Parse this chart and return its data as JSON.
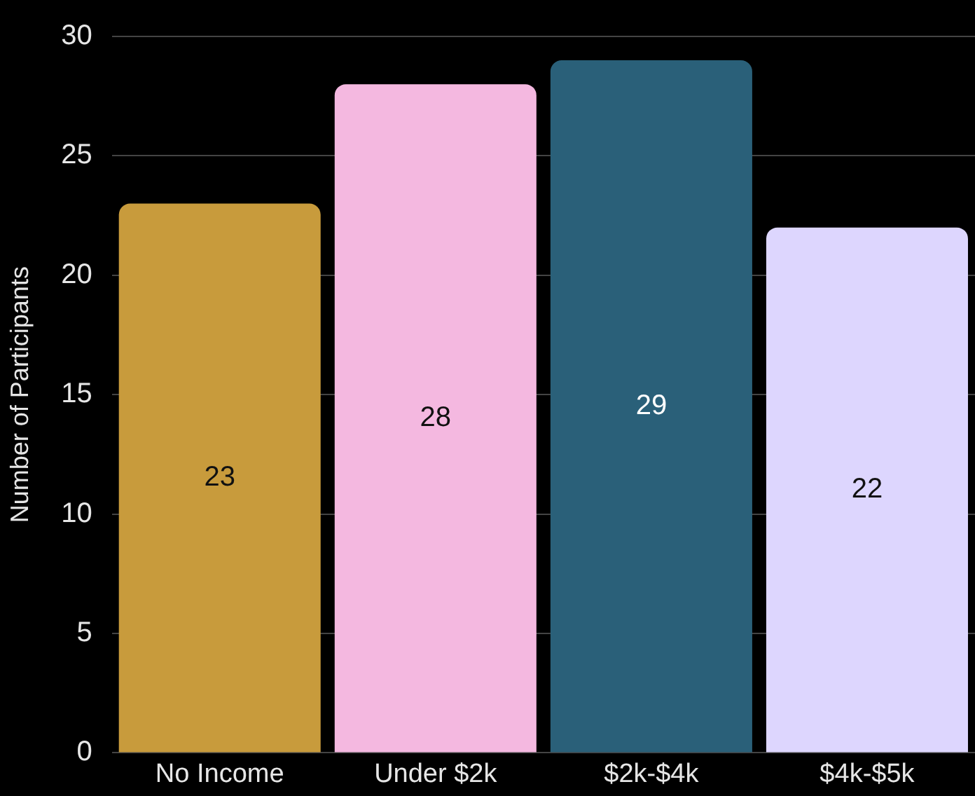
{
  "chart_data": {
    "type": "bar",
    "ylabel": "Number of Participants",
    "categories": [
      "No Income",
      "Under $2k",
      "$2k-$4k",
      "$4k-$5k"
    ],
    "values": [
      23,
      28,
      29,
      22
    ],
    "colors": [
      "#c89b3c",
      "#f4b8e0",
      "#2a6079",
      "#ddd6fe"
    ],
    "ylim": [
      0,
      30
    ],
    "yticks": [
      0,
      5,
      10,
      15,
      20,
      25,
      30
    ],
    "grid": "y",
    "data_labels": true
  }
}
